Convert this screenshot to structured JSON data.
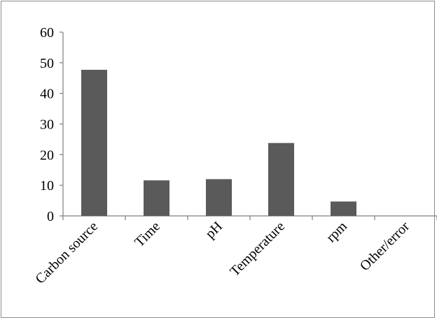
{
  "chart_data": {
    "type": "bar",
    "title": "",
    "xlabel": "",
    "ylabel": "",
    "categories": [
      "Carbon source",
      "Time",
      "pH",
      "Temperature",
      "rpm",
      "Other/error"
    ],
    "values": [
      47.7,
      11.6,
      12.0,
      23.8,
      4.7,
      0
    ],
    "ylim": [
      0,
      60
    ],
    "yticks": [
      0,
      10,
      20,
      30,
      40,
      50,
      60
    ],
    "ytick_labels": [
      "0",
      "10",
      "20",
      "30",
      "40",
      "50",
      "60"
    ],
    "grid": false,
    "legend": "none",
    "bar_color": "#5a5a5a"
  }
}
